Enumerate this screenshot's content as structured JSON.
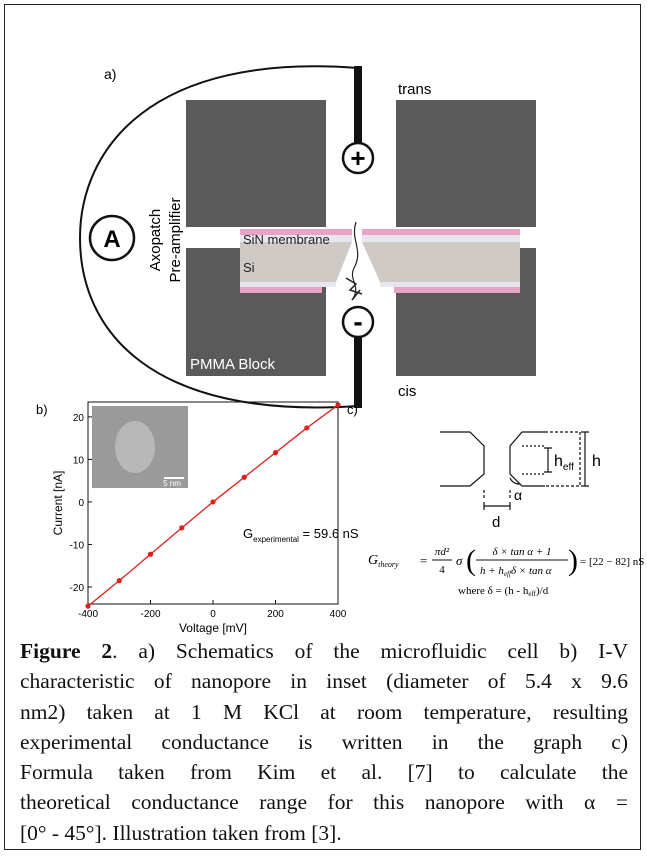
{
  "panel_a": {
    "label": "a)",
    "trans": "trans",
    "cis": "cis",
    "amplifier_line1": "Axopatch",
    "amplifier_line2": "Pre-amplifier",
    "ammeter": "A",
    "plus": "+",
    "minus": "-",
    "membrane": "SiN membrane",
    "silicon": "Si",
    "block": "PMMA Block"
  },
  "iv_plot": {
    "type": "scatter",
    "label": "b)",
    "x_label": "Voltage [mV]",
    "y_label": "Current [nA]",
    "x": [
      -400,
      -300,
      -200,
      -100,
      0,
      100,
      200,
      300,
      400
    ],
    "values": [
      -24.5,
      -18.5,
      -12.3,
      -6.1,
      0,
      5.8,
      11.6,
      17.4,
      22.8
    ],
    "color": "#e0201b",
    "xlim": [
      -400,
      400
    ],
    "ylim": [
      -24,
      23.5
    ],
    "xticks": [
      -400,
      -200,
      0,
      200,
      400
    ],
    "yticks": [
      -20,
      -10,
      0,
      10,
      20
    ],
    "conductance_symbol": "G",
    "conductance_subscript": "experimental",
    "conductance_value": " = 59.6 nS",
    "inset_scale": "5 nm"
  },
  "panel_c": {
    "label": "c)",
    "h_eff": "h",
    "h_eff_sub": "eff",
    "h": "h",
    "alpha": "α",
    "d": "d",
    "formula": {
      "lhs": "G",
      "lhs_sub": "theory",
      "eq": "=",
      "num1": "πd²",
      "den1": "4",
      "sigma": "σ",
      "num2": "δ × tan α + 1",
      "den2_a": "h + h",
      "den2_sub": "eff",
      "den2_b": "δ × tan α",
      "result": "= [22 − 82] nS",
      "where": "where δ = (h - h",
      "where_sub": "eff",
      "where_end": ")/d"
    }
  },
  "caption": {
    "label": "Figure 2",
    "lines": [
      ". a) Schematics of the microfluidic cell b) I-V",
      "characteristic of nanopore in inset (diameter of 5.4 x 9.6",
      "nm2) taken at 1 M KCl at room temperature, resulting",
      "experimental conductance is written in the graph c)",
      "Formula taken from Kim et al. [7] to calculate the",
      "theoretical conductance range for this nanopore with α =",
      "[0° - 45°]. Illustration taken from [3]."
    ]
  }
}
